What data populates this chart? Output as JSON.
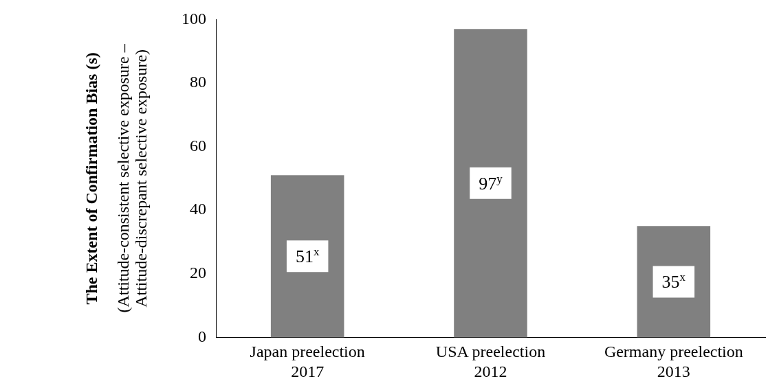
{
  "chart_data": {
    "type": "bar",
    "ylabel": "The Extent of Confirmation Bias (s)",
    "annotations": [
      "(Attitude-consistent selective exposure – Attitude-discrepant selective exposure)"
    ],
    "categories": [
      "Japan preelection 2017",
      "USA preelection 2012",
      "Germany preelection 2013"
    ],
    "values": [
      51,
      97,
      35
    ],
    "color": "#808080",
    "value_labels": [
      "51$^{x}$",
      "97$^{y}$",
      "35$^{x}$"
    ],
    "ylim": [
      0,
      100
    ],
    "yticks": [
      0,
      20,
      40,
      60,
      80,
      100
    ],
    "grid": false,
    "legend": false
  }
}
